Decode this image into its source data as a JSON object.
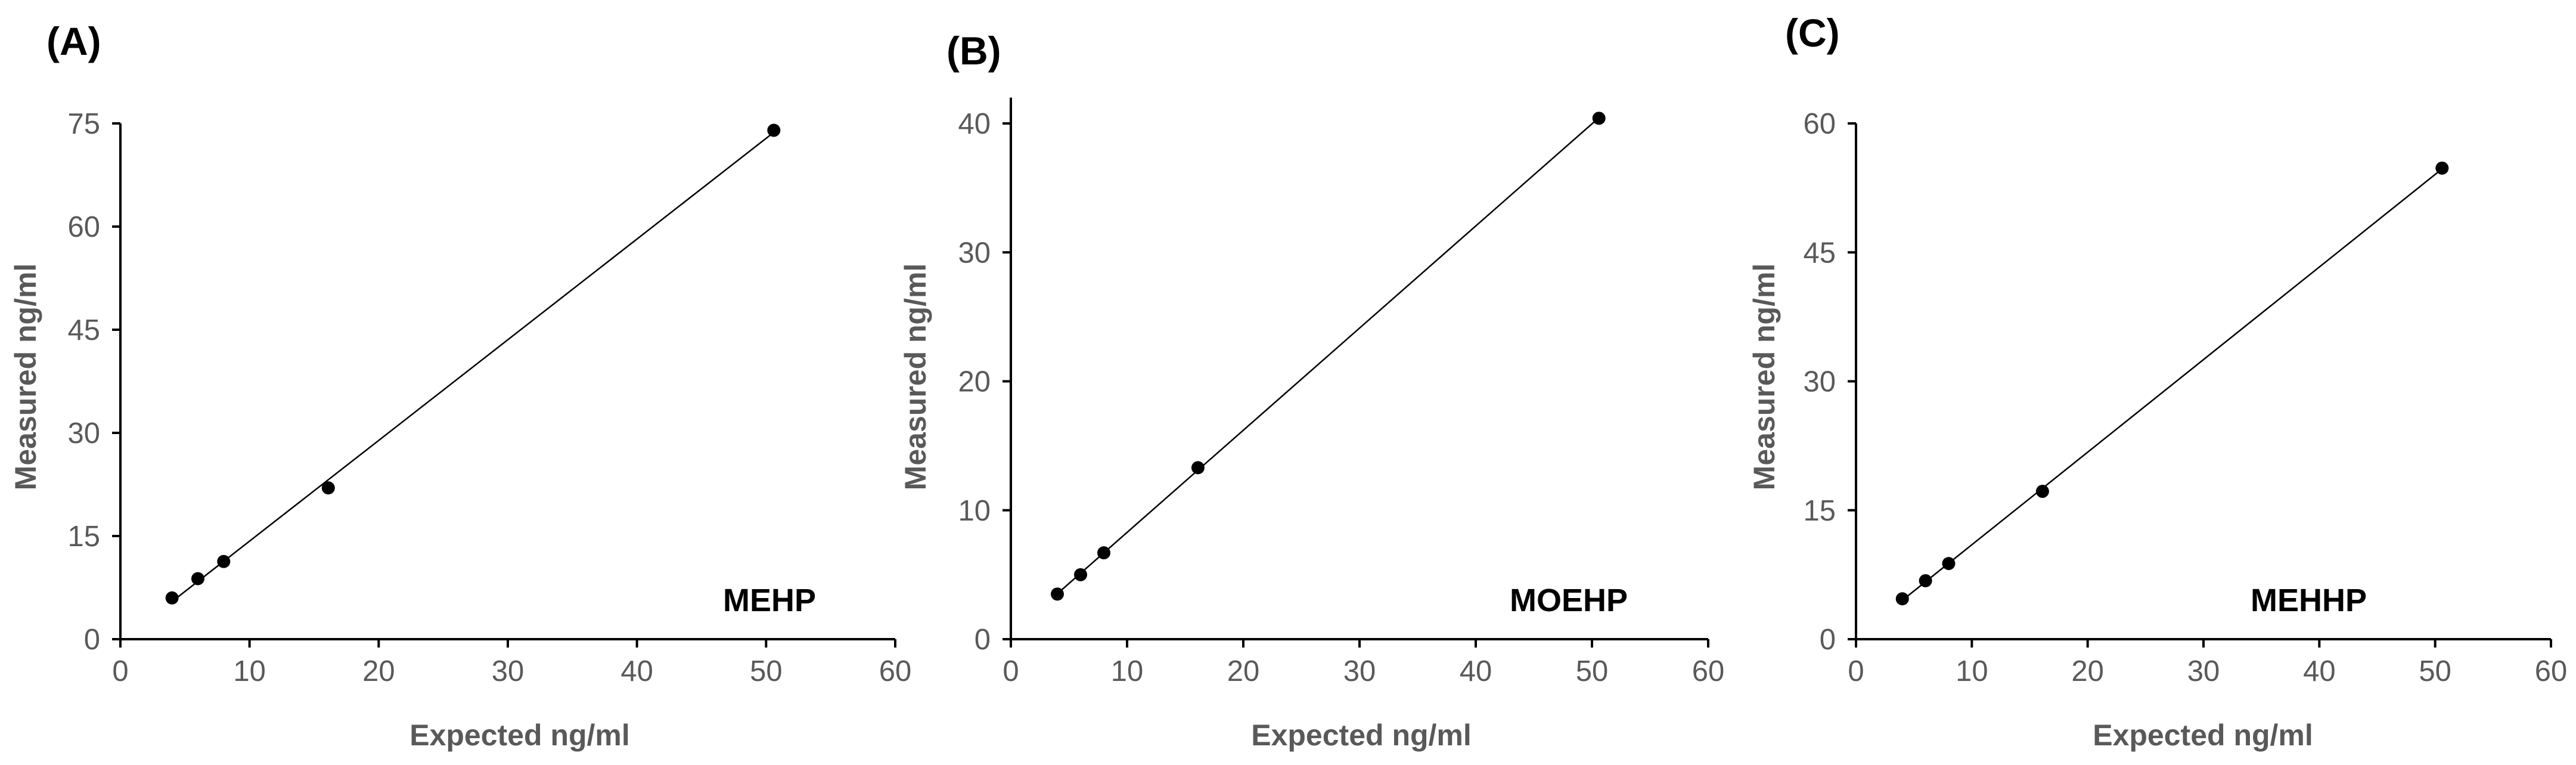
{
  "chart_data": [
    {
      "type": "scatter",
      "panel": "(A)",
      "analyte": "MEHP",
      "xlabel": "Expected ng/ml",
      "ylabel": "Measured ng/ml",
      "xlim": [
        0,
        60
      ],
      "ylim": [
        0,
        75
      ],
      "xticks": [
        0,
        10,
        20,
        30,
        40,
        50,
        60
      ],
      "yticks": [
        0,
        15,
        30,
        45,
        60,
        75
      ],
      "x": [
        4,
        6,
        8,
        16.1,
        50.6
      ],
      "y": [
        6,
        8.8,
        11.3,
        22,
        74
      ],
      "trendline": true,
      "grid": false
    },
    {
      "type": "scatter",
      "panel": "(B)",
      "analyte": "MOEHP",
      "xlabel": "Expected ng/ml",
      "ylabel": "Measured ng/ml",
      "xlim": [
        0,
        60
      ],
      "ylim": [
        0,
        42
      ],
      "xticks": [
        0,
        10,
        20,
        30,
        40,
        50,
        60
      ],
      "yticks": [
        0,
        10,
        20,
        30,
        40
      ],
      "x": [
        4,
        6,
        8,
        16.1,
        50.6
      ],
      "y": [
        3.5,
        5,
        6.7,
        13.3,
        40.4
      ],
      "trendline": true,
      "grid": false
    },
    {
      "type": "scatter",
      "panel": "(C)",
      "analyte": "MEHHP",
      "xlabel": "Expected ng/ml",
      "ylabel": "Measured ng/ml",
      "xlim": [
        0,
        60
      ],
      "ylim": [
        0,
        60
      ],
      "xticks": [
        0,
        10,
        20,
        30,
        40,
        50,
        60
      ],
      "yticks": [
        0,
        15,
        30,
        45,
        60
      ],
      "x": [
        4,
        6,
        8,
        16.1,
        50.6
      ],
      "y": [
        4.7,
        6.8,
        8.8,
        17.2,
        54.8
      ],
      "trendline": true,
      "grid": false
    }
  ]
}
